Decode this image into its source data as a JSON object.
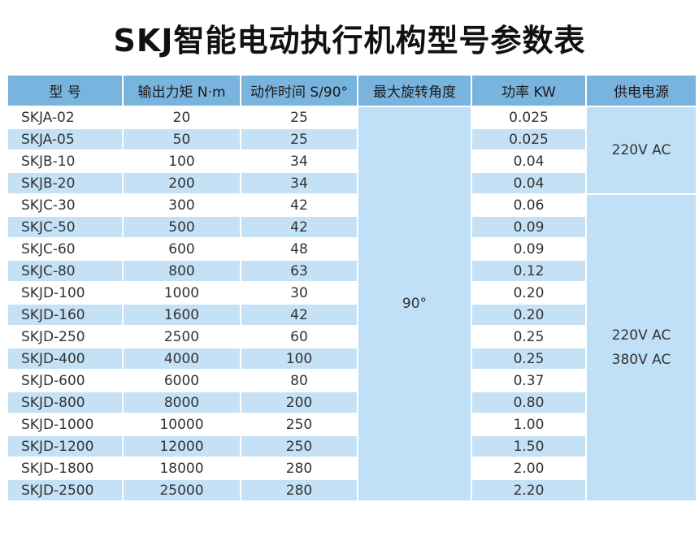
{
  "title": "SKJ智能电动执行机构型号参数表",
  "headers": [
    "型 号",
    "输出力矩 N·m",
    "动作时间 S/90°",
    "最大旋转角度",
    "功率 KW",
    "供电电源"
  ],
  "rows": [
    {
      "model": "SKJA-02",
      "torque": "20",
      "time": "25",
      "power": "0.025"
    },
    {
      "model": "SKJA-05",
      "torque": "50",
      "time": "25",
      "power": "0.025"
    },
    {
      "model": "SKJB-10",
      "torque": "100",
      "time": "34",
      "power": "0.04"
    },
    {
      "model": "SKJB-20",
      "torque": "200",
      "time": "34",
      "power": "0.04"
    },
    {
      "model": "SKJC-30",
      "torque": "300",
      "time": "42",
      "power": "0.06"
    },
    {
      "model": "SKJC-50",
      "torque": "500",
      "time": "42",
      "power": "0.09"
    },
    {
      "model": "SKJC-60",
      "torque": "600",
      "time": "48",
      "power": "0.09"
    },
    {
      "model": "SKJC-80",
      "torque": "800",
      "time": "63",
      "power": "0.12"
    },
    {
      "model": "SKJD-100",
      "torque": "1000",
      "time": "30",
      "power": "0.20"
    },
    {
      "model": "SKJD-160",
      "torque": "1600",
      "time": "42",
      "power": "0.20"
    },
    {
      "model": "SKJD-250",
      "torque": "2500",
      "time": "60",
      "power": "0.25"
    },
    {
      "model": "SKJD-400",
      "torque": "4000",
      "time": "100",
      "power": "0.25"
    },
    {
      "model": "SKJD-600",
      "torque": "6000",
      "time": "80",
      "power": "0.37"
    },
    {
      "model": "SKJD-800",
      "torque": "8000",
      "time": "200",
      "power": "0.80"
    },
    {
      "model": "SKJD-1000",
      "torque": "10000",
      "time": "250",
      "power": "1.00"
    },
    {
      "model": "SKJD-1200",
      "torque": "12000",
      "time": "250",
      "power": "1.50"
    },
    {
      "model": "SKJD-1800",
      "torque": "18000",
      "time": "280",
      "power": "2.00"
    },
    {
      "model": "SKJD-2500",
      "torque": "25000",
      "time": "280",
      "power": "2.20"
    }
  ],
  "max_angle": "90°",
  "supply_a": "220V AC",
  "supply_b_line1": "220V AC",
  "supply_b_line2": "380V AC"
}
